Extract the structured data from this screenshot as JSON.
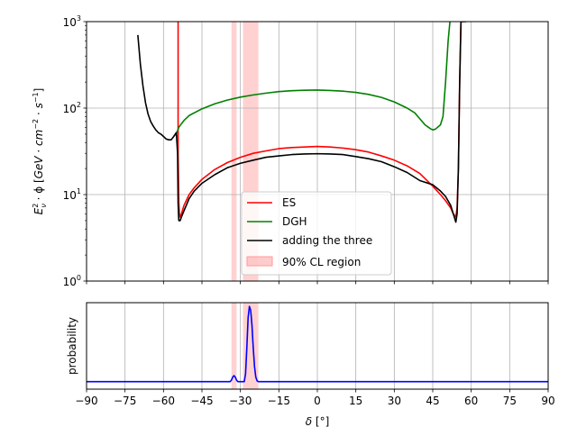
{
  "chart_data": [
    {
      "type": "line",
      "panel": "top",
      "yscale": "log",
      "ylim": [
        1,
        1000
      ],
      "xlim": [
        -90,
        90
      ],
      "grid": true,
      "ylabel": "E_ν² · ϕ [GeV · cm⁻² · s⁻¹]",
      "ylabel_parts": {
        "E": "E",
        "sup2": "2",
        "subnu": "ν",
        "mid": " · ϕ [",
        "GeV": "GeV",
        "dot1": " · ",
        "cm": "cm",
        "sup_cm": "−2",
        "dot2": " · ",
        "s": "s",
        "sup_s": "−1",
        "close": "]"
      },
      "y_ticks": [
        {
          "value": 1,
          "base": "10",
          "exp": "0"
        },
        {
          "value": 10,
          "base": "10",
          "exp": "1"
        },
        {
          "value": 100,
          "base": "10",
          "exp": "2"
        },
        {
          "value": 1000,
          "base": "10",
          "exp": "3"
        }
      ],
      "legend_position": "lower-center",
      "legend": [
        "ES",
        "DGH",
        "adding the three",
        "90% CL region"
      ],
      "shaded_regions": [
        {
          "label": "90% CL region",
          "color": "#ff9999",
          "ranges": [
            [
              -33.5,
              -31.5
            ],
            [
              -29,
              -23
            ]
          ]
        }
      ],
      "series": [
        {
          "name": "ES",
          "color": "#ff0000",
          "x": [
            -54.3,
            -54.3,
            -54.0,
            -53.8,
            -53.5,
            -53,
            -52,
            -50,
            -48,
            -45,
            -40,
            -35,
            -30,
            -25,
            -20,
            -15,
            -10,
            -5,
            0,
            5,
            10,
            15,
            20,
            25,
            30,
            35,
            40,
            45,
            48,
            50,
            52,
            53,
            54,
            54.5,
            55,
            55.5,
            56,
            57
          ],
          "y": [
            1000,
            30,
            8,
            6,
            5.5,
            6,
            7.5,
            10,
            12,
            15,
            19.5,
            23.5,
            27,
            30,
            32,
            34,
            35,
            35.5,
            36,
            35.5,
            34.5,
            33,
            31,
            28,
            25,
            21.5,
            17.5,
            12.5,
            10,
            8.5,
            7,
            6,
            5.5,
            7,
            20,
            200,
            1000,
            1000
          ]
        },
        {
          "name": "DGH",
          "color": "#008000",
          "x": [
            -56,
            -55,
            -54.5,
            -54,
            -53,
            -52,
            -50,
            -45,
            -40,
            -35,
            -30,
            -25,
            -20,
            -15,
            -10,
            -5,
            0,
            5,
            10,
            15,
            20,
            25,
            30,
            35,
            38,
            40,
            42,
            44,
            45,
            46,
            48,
            49,
            50,
            51,
            51.7
          ],
          "y": [
            47,
            51,
            55,
            60,
            66,
            72,
            82,
            98,
            112,
            124,
            134,
            142,
            149,
            155,
            159,
            161,
            162,
            160,
            157,
            152,
            144,
            133,
            118,
            100,
            88,
            75,
            64,
            58,
            56,
            57,
            64,
            80,
            200,
            600,
            1000
          ]
        },
        {
          "name": "adding the three",
          "color": "#000000",
          "x": [
            -70,
            -69,
            -68,
            -67,
            -66,
            -65,
            -64,
            -63,
            -62,
            -61,
            -60,
            -59,
            -58,
            -57,
            -56,
            -55,
            -54.5,
            -54.3,
            -54.1,
            -54,
            -53.5,
            -53,
            -52,
            -50,
            -48,
            -45,
            -40,
            -35,
            -30,
            -25,
            -20,
            -15,
            -10,
            -5,
            0,
            5,
            10,
            15,
            20,
            25,
            30,
            35,
            40,
            45,
            48,
            50,
            52,
            53,
            54,
            54.5,
            55,
            55.5,
            56,
            57,
            58
          ],
          "y": [
            700,
            320,
            180,
            115,
            85,
            70,
            62,
            56,
            52,
            50,
            47,
            44,
            43,
            43,
            47,
            52,
            30,
            8,
            5.5,
            5,
            5,
            5.5,
            6.5,
            9,
            11,
            13.5,
            17,
            20.5,
            23,
            25,
            27,
            28,
            29,
            29.5,
            29.7,
            29.5,
            29,
            27.5,
            26,
            24,
            21,
            18,
            14.5,
            13,
            11,
            9.5,
            7.5,
            6,
            4.8,
            6,
            20,
            200,
            1000,
            1000,
            1000
          ]
        }
      ]
    },
    {
      "type": "line",
      "panel": "bottom",
      "xlim": [
        -90,
        90
      ],
      "grid": true,
      "ylabel": "probability",
      "xlabel": "δ [°]",
      "xlabel_parts": {
        "delta": "δ",
        "rest": " [°]"
      },
      "x_ticks": [
        "−90",
        "−75",
        "−60",
        "−45",
        "−30",
        "−15",
        "0",
        "15",
        "30",
        "45",
        "60",
        "75",
        "90"
      ],
      "x_tick_values": [
        -90,
        -75,
        -60,
        -45,
        -30,
        -15,
        0,
        15,
        30,
        45,
        60,
        75,
        90
      ],
      "shaded_regions": [
        {
          "color": "#ff9999",
          "ranges": [
            [
              -33.5,
              -31.5
            ],
            [
              -29,
              -23
            ]
          ]
        }
      ],
      "series": [
        {
          "color": "#0000ff",
          "x": [
            -90,
            -34,
            -33.5,
            -33,
            -32.5,
            -32,
            -31.5,
            -31,
            -30,
            -28.5,
            -28,
            -27.5,
            -27,
            -26.5,
            -26,
            -25.5,
            -25,
            -24.5,
            -24,
            -23.5,
            -23,
            -22,
            90
          ],
          "y": [
            0,
            0,
            0.02,
            0.06,
            0.08,
            0.06,
            0.02,
            0,
            0,
            0,
            0.1,
            0.45,
            0.85,
            1.0,
            0.95,
            0.75,
            0.45,
            0.2,
            0.06,
            0.01,
            0,
            0,
            0
          ]
        }
      ]
    }
  ]
}
